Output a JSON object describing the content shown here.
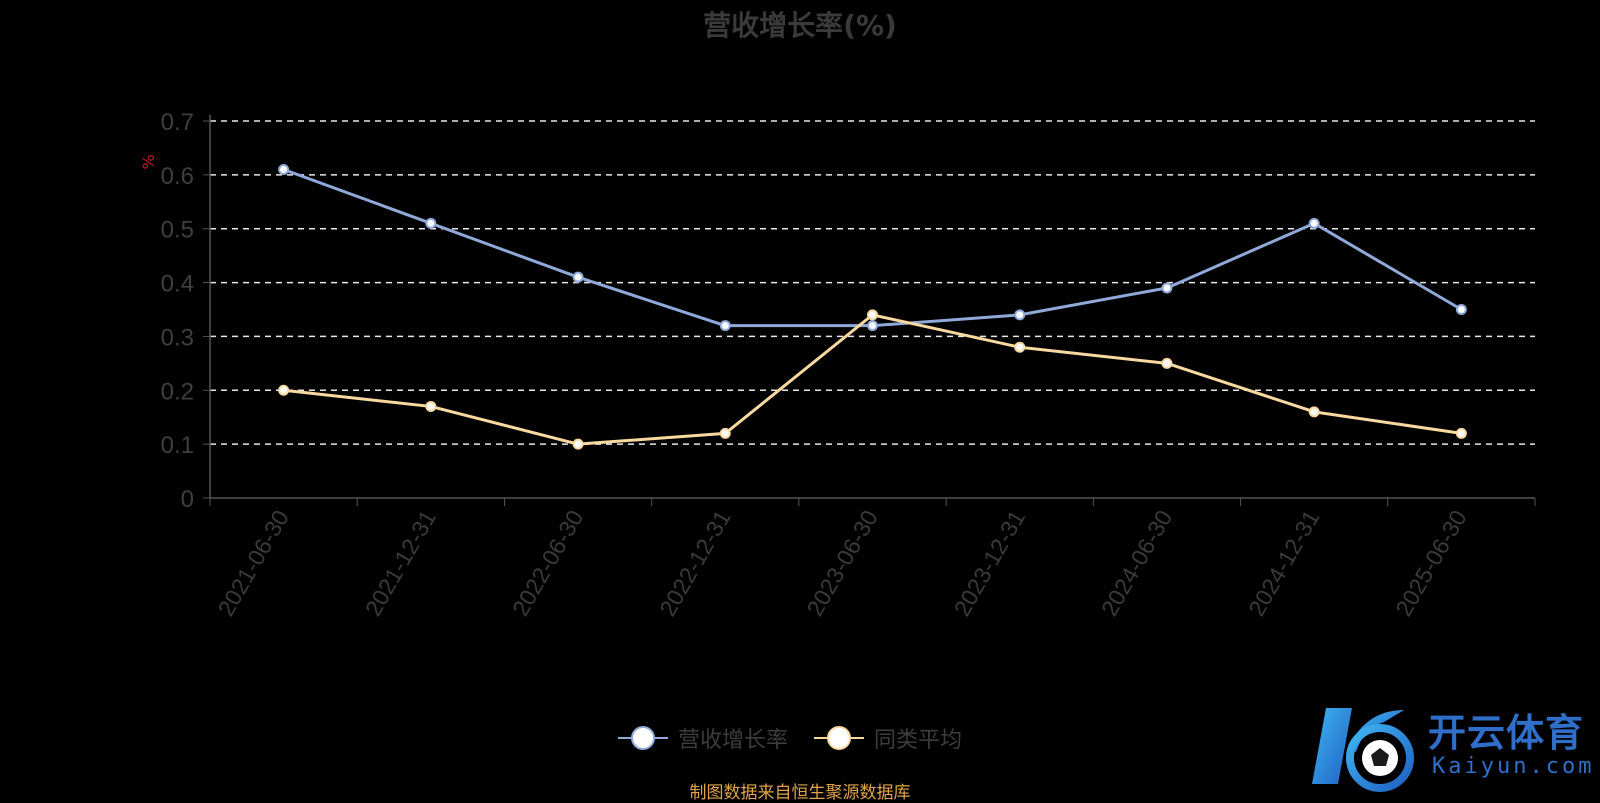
{
  "chart_data": {
    "type": "line",
    "title": "营收增长率(%)",
    "ylabel": "%",
    "xlabel": "",
    "categories": [
      "2021-06-30",
      "2021-12-31",
      "2022-06-30",
      "2022-12-31",
      "2023-06-30",
      "2023-12-31",
      "2024-06-30",
      "2024-12-31",
      "2025-06-30"
    ],
    "ylim": [
      0,
      0.7
    ],
    "yticks": [
      "0",
      "0.1",
      "0.2",
      "0.3",
      "0.4",
      "0.5",
      "0.6",
      "0.7"
    ],
    "grid": true,
    "legend_position": "bottom",
    "series": [
      {
        "name": "营收增长率",
        "color": "#8fa9d8",
        "values": [
          0.61,
          0.51,
          0.41,
          0.32,
          0.32,
          0.34,
          0.39,
          0.51,
          0.35
        ]
      },
      {
        "name": "同类平均",
        "color": "#f8d9a0",
        "values": [
          0.2,
          0.17,
          0.1,
          0.12,
          0.34,
          0.28,
          0.25,
          0.16,
          0.12
        ]
      }
    ]
  },
  "footer": "制图数据来自恒生聚源数据库",
  "logo": {
    "name": "开云体育",
    "sub": "Kaiyun.com",
    "color": "#2f6fc9"
  }
}
